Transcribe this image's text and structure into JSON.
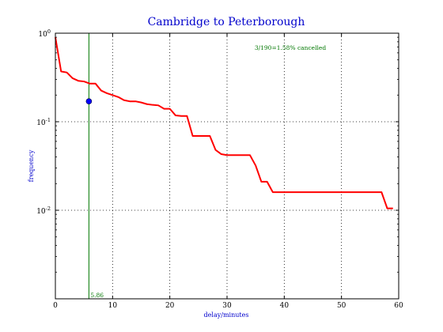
{
  "chart_data": {
    "type": "line",
    "title": "Cambridge to Peterborough",
    "xlabel": "delay/minutes",
    "ylabel": "frequency",
    "xlim": [
      0,
      60
    ],
    "ylim": [
      0.001,
      1
    ],
    "yscale": "log",
    "grid": true,
    "x_ticks": [
      0,
      10,
      20,
      30,
      40,
      50,
      60
    ],
    "y_ticks": [
      {
        "value": 1,
        "base": "10",
        "exp": "0"
      },
      {
        "value": 0.1,
        "base": "10",
        "exp": "-1"
      },
      {
        "value": 0.01,
        "base": "10",
        "exp": "-2"
      }
    ],
    "series": [
      {
        "color": "#ff0000",
        "x": [
          0,
          1,
          2,
          3,
          4,
          5,
          6,
          7,
          8,
          9,
          10,
          11,
          12,
          13,
          14,
          15,
          16,
          17,
          18,
          19,
          20,
          21,
          22,
          23,
          24,
          25,
          26,
          27,
          28,
          29,
          30,
          31,
          32,
          33,
          34,
          35,
          36,
          37,
          38,
          39,
          40,
          41,
          42,
          43,
          44,
          45,
          46,
          47,
          48,
          49,
          50,
          51,
          52,
          53,
          54,
          55,
          56,
          57,
          58,
          59
        ],
        "y": [
          0.9,
          0.37,
          0.36,
          0.31,
          0.29,
          0.285,
          0.27,
          0.27,
          0.225,
          0.21,
          0.2,
          0.19,
          0.175,
          0.17,
          0.17,
          0.165,
          0.158,
          0.155,
          0.153,
          0.14,
          0.14,
          0.118,
          0.116,
          0.116,
          0.069,
          0.069,
          0.069,
          0.069,
          0.048,
          0.043,
          0.042,
          0.042,
          0.042,
          0.042,
          0.042,
          0.032,
          0.021,
          0.021,
          0.016,
          0.016,
          0.016,
          0.016,
          0.016,
          0.016,
          0.016,
          0.016,
          0.016,
          0.016,
          0.016,
          0.016,
          0.016,
          0.016,
          0.016,
          0.016,
          0.016,
          0.016,
          0.016,
          0.016,
          0.0105,
          0.0105
        ]
      }
    ],
    "marker": {
      "x": 5.86,
      "y": 0.17,
      "color": "#0000ff"
    },
    "vline": {
      "x": 5.86,
      "label": "5.86",
      "color": "#007700"
    },
    "annotation": "3/190=1.58% cancelled"
  }
}
